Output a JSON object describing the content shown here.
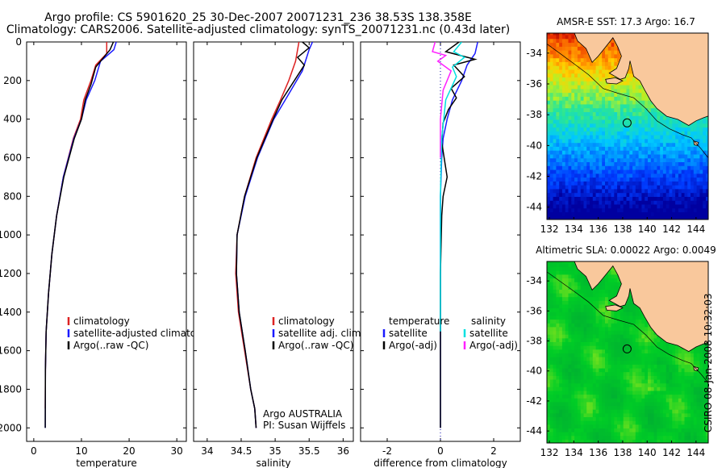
{
  "header": {
    "line1": "Argo profile: CS 5901620_25 30-Dec-2007 20071231_236 38.53S 138.358E",
    "line2": "Climatology: CARS2006. Satellite-adjusted climatology: synTS_20071231.nc (0.43d later)"
  },
  "colors": {
    "climatology": "#dd2222",
    "satellite": "#1a1aff",
    "argo": "#000000",
    "sal_satellite": "#00e0e0",
    "sal_argo": "#ff20ff"
  },
  "chart_data": [
    {
      "type": "line",
      "id": "temperature",
      "xlabel": "temperature",
      "xlim": [
        -1.5,
        32
      ],
      "xticks": [
        0,
        10,
        20,
        30
      ],
      "ylim": [
        2070,
        0
      ],
      "yticks": [
        0,
        200,
        400,
        600,
        800,
        1000,
        1200,
        1400,
        1600,
        1800,
        2000
      ],
      "legend": [
        "climatology",
        "satellite-adjusted climatology",
        "Argo(..raw -QC)"
      ],
      "series": [
        {
          "name": "climatology",
          "color": "#dd2222",
          "x": [
            15.3,
            15.3,
            13.0,
            12.0,
            10.5,
            9.8,
            8.3,
            6.2,
            4.8,
            3.8,
            3.1,
            2.6,
            2.45,
            2.4
          ],
          "y": [
            0,
            60,
            120,
            200,
            300,
            400,
            500,
            700,
            900,
            1100,
            1300,
            1500,
            1700,
            1900
          ]
        },
        {
          "name": "satellite-adjusted climatology",
          "color": "#1a1aff",
          "x": [
            17.3,
            16.8,
            14.0,
            12.8,
            11.0,
            10.0,
            8.4,
            6.2,
            4.8,
            3.8,
            3.1,
            2.6,
            2.45,
            2.4
          ],
          "y": [
            0,
            40,
            100,
            200,
            300,
            400,
            500,
            700,
            900,
            1100,
            1300,
            1500,
            1700,
            2000
          ]
        },
        {
          "name": "Argo(..raw -QC)",
          "color": "#000000",
          "x": [
            16.7,
            16.0,
            13.0,
            12.0,
            10.8,
            10.0,
            8.5,
            6.3,
            4.8,
            3.8,
            3.1,
            2.6,
            2.45,
            2.4
          ],
          "y": [
            0,
            40,
            130,
            220,
            300,
            400,
            500,
            700,
            900,
            1100,
            1300,
            1500,
            1700,
            2000
          ]
        }
      ]
    },
    {
      "type": "line",
      "id": "salinity",
      "xlabel": "salinity",
      "xlim": [
        33.8,
        36.15
      ],
      "xticks": [
        34,
        34.5,
        35,
        35.5,
        36
      ],
      "ylim": [
        2070,
        0
      ],
      "legend": [
        "climatology",
        "satellite adj. clim.",
        "Argo(..raw -QC)"
      ],
      "annotation": [
        "Argo AUSTRALIA",
        "PI: Susan Wijffels"
      ],
      "series": [
        {
          "name": "climatology",
          "color": "#dd2222",
          "x": [
            35.35,
            35.3,
            35.2,
            35.08,
            34.95,
            34.72,
            34.55,
            34.44,
            34.42,
            34.46,
            34.55,
            34.64,
            34.7,
            34.72
          ],
          "y": [
            0,
            100,
            200,
            300,
            400,
            600,
            800,
            1000,
            1200,
            1400,
            1600,
            1800,
            1900,
            2000
          ]
        },
        {
          "name": "satellite adj. clim.",
          "color": "#1a1aff",
          "x": [
            35.55,
            35.5,
            35.4,
            35.15,
            34.98,
            34.74,
            34.56,
            34.44,
            34.43,
            34.47,
            34.56,
            34.64,
            34.7,
            34.72
          ],
          "y": [
            0,
            40,
            150,
            300,
            400,
            600,
            800,
            1000,
            1200,
            1400,
            1600,
            1800,
            1900,
            2000
          ]
        },
        {
          "name": "Argo(..raw -QC)",
          "color": "#000000",
          "x": [
            35.4,
            35.5,
            35.33,
            35.43,
            35.1,
            34.97,
            34.73,
            34.55,
            34.44,
            34.43,
            34.47,
            34.56,
            34.64,
            34.7,
            34.72
          ],
          "y": [
            0,
            30,
            80,
            120,
            300,
            400,
            600,
            800,
            1000,
            1200,
            1400,
            1600,
            1800,
            1900,
            2000
          ]
        }
      ]
    },
    {
      "type": "line",
      "id": "difference",
      "xlabel": "difference from climatology",
      "xlim": [
        -3,
        3
      ],
      "xticks": [
        -2,
        0,
        2
      ],
      "ylim": [
        2070,
        0
      ],
      "legend_left": [
        "temperature",
        "satellite",
        "Argo(-adj)"
      ],
      "legend_right": [
        "salinity",
        "satellite",
        "Argo(-adj)"
      ],
      "series": [
        {
          "name": "temperature satellite",
          "color": "#1a1aff",
          "x": [
            1.4,
            1.3,
            1.0,
            0.8,
            0.45,
            0.25,
            0.1,
            0.05,
            0.0,
            0.0,
            0.0,
            0.0
          ],
          "y": [
            0,
            60,
            120,
            200,
            300,
            400,
            500,
            600,
            800,
            1000,
            1500,
            2000
          ]
        },
        {
          "name": "temperature Argo(-adj)",
          "color": "#000000",
          "x": [
            0.7,
            0.2,
            1.3,
            0.5,
            0.9,
            0.4,
            0.6,
            0.3,
            0.1,
            0.05,
            0.25,
            0.1,
            0.05,
            0.0,
            0.0
          ],
          "y": [
            0,
            50,
            90,
            120,
            180,
            240,
            290,
            350,
            420,
            520,
            700,
            800,
            900,
            1200,
            2000
          ]
        },
        {
          "name": "salinity satellite",
          "color": "#00e0e0",
          "x": [
            0.8,
            0.5,
            0.9,
            0.45,
            0.6,
            0.2,
            0.05,
            0.0,
            0.0
          ],
          "y": [
            0,
            50,
            80,
            130,
            180,
            300,
            500,
            800,
            1500
          ]
        },
        {
          "name": "salinity Argo(-adj)",
          "color": "#ff20ff",
          "x": [
            -0.2,
            -0.3,
            0.2,
            -0.1,
            0.4,
            0.1,
            0.0,
            0.0
          ],
          "y": [
            0,
            50,
            70,
            100,
            150,
            250,
            400,
            600
          ]
        }
      ]
    },
    {
      "type": "heatmap",
      "id": "sst-map",
      "title": "AMSR-E SST: 17.3 Argo: 16.7",
      "xlim": [
        131.8,
        145
      ],
      "ylim": [
        -44.8,
        -32.7
      ],
      "xticks": [
        132,
        134,
        136,
        138,
        140,
        142,
        144
      ],
      "yticks": [
        -34,
        -36,
        -38,
        -40,
        -42,
        -44
      ],
      "marker": {
        "lon": 138.36,
        "lat": -38.53
      }
    },
    {
      "type": "heatmap",
      "id": "sla-map",
      "title": "Altimetric SLA: 0.00022 Argo: 0.0049",
      "xlim": [
        131.8,
        145
      ],
      "ylim": [
        -44.8,
        -32.7
      ],
      "xticks": [
        132,
        134,
        136,
        138,
        140,
        142,
        144
      ],
      "yticks": [
        -34,
        -36,
        -38,
        -40,
        -42,
        -44
      ],
      "marker": {
        "lon": 138.36,
        "lat": -38.53
      }
    }
  ],
  "stamp": "CSIRO 08-Jan-2008 10:32:03"
}
